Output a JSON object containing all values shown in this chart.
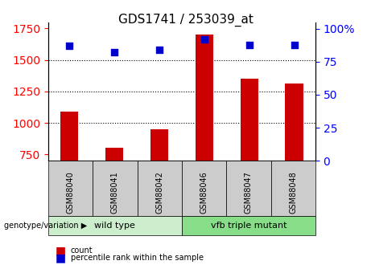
{
  "title": "GDS1741 / 253039_at",
  "categories": [
    "GSM88040",
    "GSM88041",
    "GSM88042",
    "GSM88046",
    "GSM88047",
    "GSM88048"
  ],
  "count_values": [
    1090,
    800,
    950,
    1700,
    1350,
    1310
  ],
  "percentile_values": [
    87,
    82,
    84,
    92,
    88,
    88
  ],
  "bar_color": "#cc0000",
  "dot_color": "#0000cc",
  "ylim_left": [
    700,
    1800
  ],
  "ylim_right": [
    0,
    105
  ],
  "yticks_left": [
    750,
    1000,
    1250,
    1500,
    1750
  ],
  "yticks_right": [
    0,
    25,
    50,
    75,
    100
  ],
  "ytick_labels_right": [
    "0",
    "25",
    "50",
    "75",
    "100%"
  ],
  "grid_values": [
    1000,
    1250,
    1500
  ],
  "wildtype_label": "wild type",
  "mutant_label": "vfb triple mutant",
  "genotype_label": "genotype/variation",
  "legend_count": "count",
  "legend_percentile": "percentile rank within the sample",
  "wildtype_color": "#cceecc",
  "mutant_color": "#88dd88",
  "xlabel_area_bg": "#cccccc",
  "bar_width": 0.4
}
